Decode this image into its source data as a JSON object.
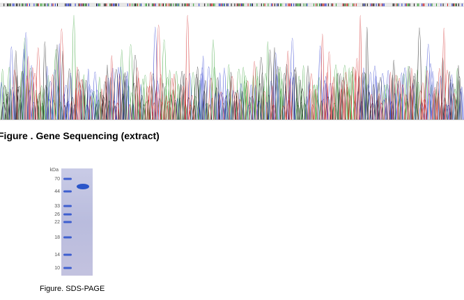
{
  "sequencing": {
    "caption": "Figure . Gene Sequencing (extract)"
  },
  "gel": {
    "unit": "kDa",
    "markers": [
      70,
      44,
      33,
      26,
      22,
      18,
      14,
      10
    ],
    "caption": "Figure. SDS-PAGE"
  }
}
